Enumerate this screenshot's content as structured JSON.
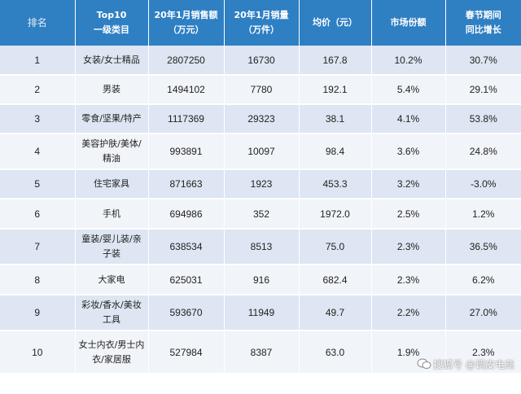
{
  "table": {
    "headers": [
      [
        "排名"
      ],
      [
        "Top10",
        "一级类目"
      ],
      [
        "20年1月销售额",
        "（万元）"
      ],
      [
        "20年1月销量",
        "（万件）"
      ],
      [
        "均价（元）"
      ],
      [
        "市场份额"
      ],
      [
        "春节期间",
        "同比增长"
      ]
    ],
    "rows": [
      {
        "rank": "1",
        "category": [
          "女装/女士精品"
        ],
        "sales": "2807250",
        "volume": "16730",
        "avg_price": "167.8",
        "share": "10.2%",
        "growth": "30.7%"
      },
      {
        "rank": "2",
        "category": [
          "男装"
        ],
        "sales": "1494102",
        "volume": "7780",
        "avg_price": "192.1",
        "share": "5.4%",
        "growth": "29.1%"
      },
      {
        "rank": "3",
        "category": [
          "零食/坚果/特产"
        ],
        "sales": "1117369",
        "volume": "29323",
        "avg_price": "38.1",
        "share": "4.1%",
        "growth": "53.8%"
      },
      {
        "rank": "4",
        "category": [
          "美容护肤/美体/",
          "精油"
        ],
        "sales": "993891",
        "volume": "10097",
        "avg_price": "98.4",
        "share": "3.6%",
        "growth": "24.8%"
      },
      {
        "rank": "5",
        "category": [
          "住宅家具"
        ],
        "sales": "871663",
        "volume": "1923",
        "avg_price": "453.3",
        "share": "3.2%",
        "growth": "-3.0%"
      },
      {
        "rank": "6",
        "category": [
          "手机"
        ],
        "sales": "694986",
        "volume": "352",
        "avg_price": "1972.0",
        "share": "2.5%",
        "growth": "1.2%"
      },
      {
        "rank": "7",
        "category": [
          "童装/婴儿装/亲",
          "子装"
        ],
        "sales": "638534",
        "volume": "8513",
        "avg_price": "75.0",
        "share": "2.3%",
        "growth": "36.5%"
      },
      {
        "rank": "8",
        "category": [
          "大家电"
        ],
        "sales": "625031",
        "volume": "916",
        "avg_price": "682.4",
        "share": "2.3%",
        "growth": "6.2%"
      },
      {
        "rank": "9",
        "category": [
          "彩妆/香水/美妆",
          "工具"
        ],
        "sales": "593670",
        "volume": "11949",
        "avg_price": "49.7",
        "share": "2.2%",
        "growth": "27.0%"
      },
      {
        "rank": "10",
        "category": [
          "女士内衣/男士内",
          "衣/家居服"
        ],
        "sales": "527984",
        "volume": "8387",
        "avg_price": "63.0",
        "share": "1.9%",
        "growth": "2.3%"
      }
    ]
  },
  "watermark": {
    "line1": "搜狐号 @",
    "line2": "调皮电商"
  },
  "colors": {
    "header_bg": "#2f7fc3",
    "row_odd": "#dde6f2",
    "row_even": "#f1f4f9"
  }
}
